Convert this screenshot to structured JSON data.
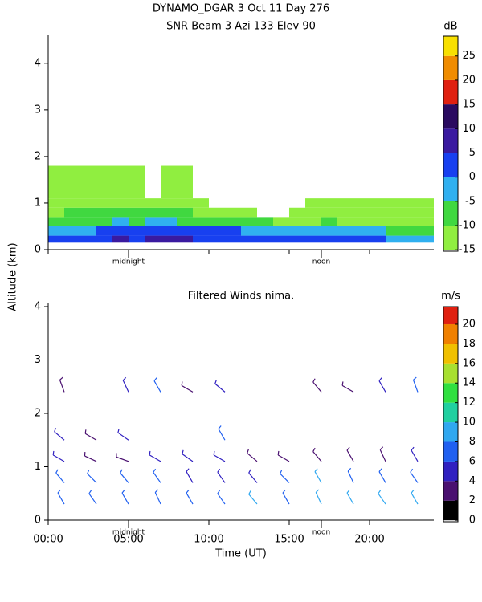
{
  "chart_data": [
    {
      "type": "heatmap",
      "title": "DYNAMO_DGAR   3 Oct 11 Day 276",
      "subtitle": "SNR Beam 3 Azi 133 Elev 90",
      "ylabel": "Altitude (km)",
      "colorbar_label": "dB",
      "annotations": [
        {
          "x": 5,
          "text": "midnight"
        },
        {
          "x": 17,
          "text": "noon"
        }
      ],
      "xlim": [
        0,
        24
      ],
      "ylim": [
        0,
        4.6
      ],
      "yticks": [
        0,
        1,
        2,
        3,
        4
      ],
      "xticks": [
        0,
        5,
        10,
        15,
        20
      ],
      "x_edges": [
        0,
        1,
        2,
        3,
        4,
        5,
        6,
        7,
        8,
        9,
        10,
        11,
        12,
        13,
        14,
        15,
        16,
        17,
        18,
        19,
        20,
        21,
        22,
        23,
        24
      ],
      "y_edges": [
        0.15,
        0.3,
        0.5,
        0.7,
        0.9,
        1.1,
        1.8
      ],
      "z": [
        [
          2,
          3,
          4,
          3,
          6,
          4,
          5,
          7,
          5,
          4,
          3,
          3,
          4,
          2,
          2,
          1,
          0,
          2,
          1,
          1,
          0,
          -1,
          -2,
          -3
        ],
        [
          -3,
          -2,
          -1,
          0,
          2,
          1,
          3,
          4,
          2,
          1,
          0,
          0,
          -1,
          -2,
          -3,
          -3,
          -4,
          -2,
          -4,
          -5,
          -5,
          -6,
          -6,
          -7
        ],
        [
          -8,
          -7,
          -6,
          -7,
          -5,
          -6,
          -4,
          -5,
          -6,
          -7,
          -6,
          -8,
          -9,
          -10,
          -11,
          -12,
          -11,
          -10,
          -11,
          -12,
          -11,
          -12,
          -12,
          -12
        ],
        [
          -11,
          -10,
          -9,
          -10,
          -8,
          -9,
          -9,
          -8,
          -10,
          -11,
          -12,
          -13,
          -14,
          null,
          null,
          -14,
          -13,
          -12,
          -13,
          -12,
          -11,
          -12,
          -13,
          -12
        ],
        [
          -12,
          -11,
          -13,
          -12,
          -11,
          -13,
          -12,
          -12,
          -13,
          -14,
          null,
          null,
          null,
          null,
          null,
          null,
          -14,
          -13,
          -12,
          -13,
          -12,
          -13,
          -14,
          -13
        ],
        [
          -11,
          -12,
          -13,
          -13,
          -12,
          -14,
          null,
          -14,
          -14,
          null,
          null,
          null,
          null,
          null,
          null,
          null,
          null,
          null,
          null,
          null,
          null,
          null,
          null,
          null
        ]
      ],
      "clim": [
        -15.3,
        29.1
      ],
      "levels": [
        -15,
        -10,
        -5,
        0,
        5,
        10,
        15,
        20,
        25,
        30
      ],
      "colors": [
        "#90ee40",
        "#40d840",
        "#30b0f0",
        "#1840f0",
        "#3a1aa0",
        "#2a0a60",
        "#e02010",
        "#f08c00",
        "#f8e000"
      ],
      "cticks": [
        -15,
        -10,
        -5,
        0,
        5,
        10,
        15,
        20,
        25
      ]
    },
    {
      "type": "barbs",
      "title": "Filtered Winds nima.",
      "xlabel": "Time (UT)",
      "colorbar_label": "m/s",
      "annotations": [
        {
          "x": 5,
          "text": "midnight"
        },
        {
          "x": 17,
          "text": "noon"
        }
      ],
      "xlim": [
        0,
        24
      ],
      "ylim": [
        0,
        4.06
      ],
      "yticks": [
        0,
        1,
        2,
        3,
        4
      ],
      "xticks": [
        {
          "value": 0,
          "label": "00:00"
        },
        {
          "value": 5,
          "label": "05:00"
        },
        {
          "value": 10,
          "label": "10:00"
        },
        {
          "value": 15,
          "label": "15:00"
        },
        {
          "value": 20,
          "label": "20:00"
        }
      ],
      "x": [
        1,
        3,
        5,
        7,
        9,
        11,
        13,
        15,
        17,
        19,
        21,
        23
      ],
      "altitudes": [
        0.3,
        0.7,
        1.1,
        1.5,
        2.4
      ],
      "speed": [
        [
          7,
          7,
          6,
          7,
          6,
          7,
          8,
          7,
          9,
          8,
          9,
          8
        ],
        [
          6,
          6,
          6,
          6,
          5,
          5,
          5,
          6,
          8,
          7,
          7,
          7
        ],
        [
          4,
          3,
          3,
          4,
          4,
          4,
          3,
          3,
          3,
          3,
          3,
          4
        ],
        [
          5,
          3,
          4,
          null,
          null,
          7,
          null,
          null,
          null,
          null,
          null,
          null
        ],
        [
          3,
          null,
          5,
          6,
          3,
          4,
          null,
          null,
          3,
          2,
          5,
          7
        ]
      ],
      "direction": [
        [
          330,
          325,
          330,
          335,
          330,
          325,
          320,
          330,
          335,
          330,
          325,
          330
        ],
        [
          320,
          315,
          320,
          325,
          330,
          325,
          320,
          315,
          330,
          335,
          330,
          325
        ],
        [
          300,
          295,
          290,
          300,
          305,
          300,
          310,
          300,
          320,
          330,
          335,
          330
        ],
        [
          310,
          300,
          305,
          null,
          null,
          330,
          null,
          null,
          null,
          null,
          null,
          null
        ],
        [
          340,
          null,
          335,
          330,
          300,
          310,
          null,
          null,
          320,
          300,
          330,
          340
        ]
      ],
      "clim": [
        -0.15,
        21.8
      ],
      "levels": [
        0,
        2,
        4,
        6,
        8,
        10,
        12,
        14,
        16,
        18,
        20,
        22
      ],
      "colors": [
        "#000000",
        "#4a1070",
        "#3020c0",
        "#2060f0",
        "#30a8f0",
        "#20d0a0",
        "#30e040",
        "#a8e030",
        "#f0c000",
        "#f08000",
        "#e02010"
      ],
      "cticks": [
        0,
        2,
        4,
        6,
        8,
        10,
        12,
        14,
        16,
        18,
        20
      ]
    }
  ]
}
